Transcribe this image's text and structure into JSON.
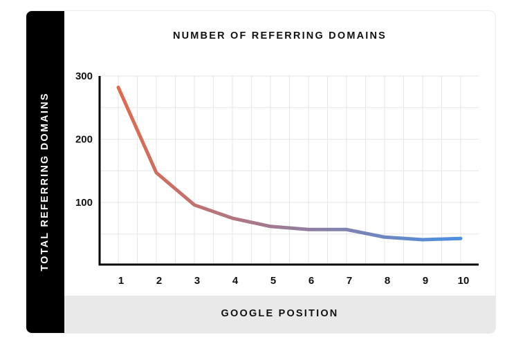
{
  "chart": {
    "title": "NUMBER OF REFERRING DOMAINS",
    "ylabel": "TOTAL REFERRING DOMAINS",
    "xlabel": "GOOGLE POSITION",
    "yticks": [
      "300",
      "200",
      "100"
    ],
    "xticks": [
      "1",
      "2",
      "3",
      "4",
      "5",
      "6",
      "7",
      "8",
      "9",
      "10"
    ]
  },
  "colors": {
    "line_start": "#e06a4e",
    "line_end": "#4a90e2",
    "sidebar": "#000000",
    "footer": "#e9e9e9",
    "grid": "#e6e6e6",
    "axis": "#000000"
  },
  "chart_data": {
    "type": "line",
    "title": "NUMBER OF REFERRING DOMAINS",
    "xlabel": "GOOGLE POSITION",
    "ylabel": "TOTAL REFERRING DOMAINS",
    "x": [
      1,
      2,
      3,
      4,
      5,
      6,
      7,
      8,
      9,
      10
    ],
    "series": [
      {
        "name": "Referring Domains",
        "values": [
          282,
          147,
          96,
          75,
          62,
          57,
          57,
          45,
          41,
          43
        ]
      }
    ],
    "ylim": [
      0,
      300
    ],
    "yticks": [
      100,
      200,
      300
    ],
    "grid": true,
    "legend": "none"
  }
}
